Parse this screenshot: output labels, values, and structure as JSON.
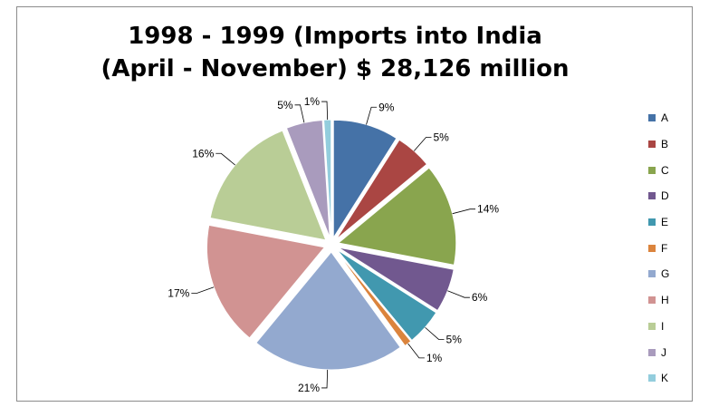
{
  "chart_data": {
    "type": "pie",
    "title": "1998 - 1999 (Imports into India (April - November) $ 28,126 million",
    "categories": [
      "A",
      "B",
      "C",
      "D",
      "E",
      "F",
      "G",
      "H",
      "I",
      "J",
      "K"
    ],
    "values": [
      9,
      5,
      14,
      6,
      5,
      1,
      21,
      17,
      16,
      5,
      1
    ],
    "labels": [
      "9%",
      "5%",
      "14%",
      "6%",
      "5%",
      "1%",
      "21%",
      "17%",
      "16%",
      "5%",
      "1%"
    ],
    "colors": [
      "#4572a7",
      "#aa4643",
      "#89a54e",
      "#71588f",
      "#4198af",
      "#db843d",
      "#93a9cf",
      "#d19392",
      "#b9cd96",
      "#a99bbd",
      "#93cddd"
    ],
    "exploded": true,
    "legend_position": "right"
  }
}
